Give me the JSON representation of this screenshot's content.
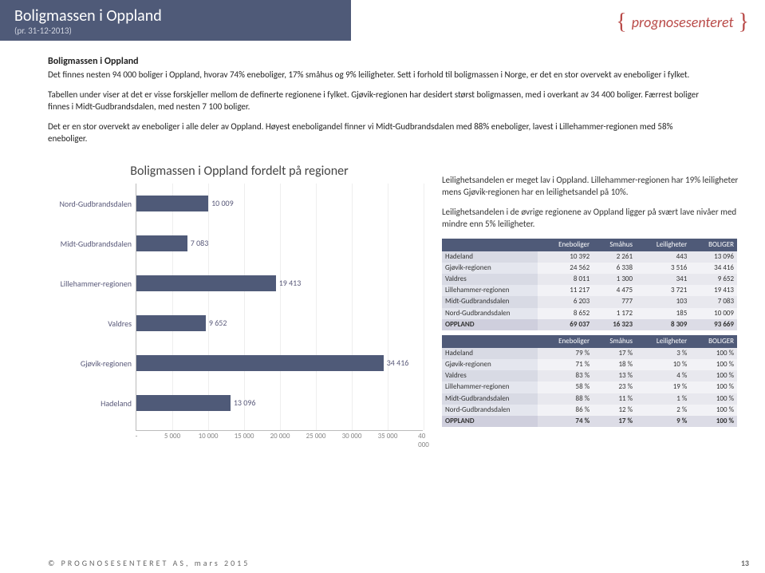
{
  "header": {
    "title": "Boligmassen i Oppland",
    "subtitle": "(pr. 31-12-2013)"
  },
  "logo": {
    "text": "prognosesenteret"
  },
  "intro": {
    "heading": "Boligmassen i Oppland",
    "p1": "Det finnes nesten 94 000 boliger i Oppland, hvorav 74% eneboliger, 17% småhus og 9% leiligheter. Sett i forhold til boligmassen i Norge, er det en stor overvekt av eneboliger i fylket.",
    "p2": "Tabellen under viser at det er visse forskjeller mellom de definerte regionene i fylket. Gjøvik-regionen har desidert størst boligmassen, med i overkant av 34 400 boliger. Færrest boliger finnes i Midt-Gudbrandsdalen, med nesten 7 100 boliger.",
    "p3": "Det er en stor overvekt av eneboliger i alle deler av Oppland. Høyest eneboligandel finner vi Midt-Gudbrandsdalen med 88% eneboliger, lavest i Lillehammer-regionen med 58% eneboliger."
  },
  "chart": {
    "title": "Boligmassen i Oppland fordelt på regioner",
    "bar_color": "#4f5a78",
    "xmax": 40000,
    "xticks": [
      "-",
      "5 000",
      "10 000",
      "15 000",
      "20 000",
      "25 000",
      "30 000",
      "35 000",
      "40 000"
    ],
    "bars": [
      {
        "label": "Nord-Gudbrandsdalen",
        "value": 10009,
        "text": "10 009"
      },
      {
        "label": "Midt-Gudbrandsdalen",
        "value": 7083,
        "text": "7 083"
      },
      {
        "label": "Lillehammer-regionen",
        "value": 19413,
        "text": "19 413"
      },
      {
        "label": "Valdres",
        "value": 9652,
        "text": "9 652"
      },
      {
        "label": "Gjøvik-regionen",
        "value": 34416,
        "text": "34 416"
      },
      {
        "label": "Hadeland",
        "value": 13096,
        "text": "13 096"
      }
    ]
  },
  "side_text": {
    "p1": "Leilighetsandelen er meget lav i Oppland. Lillehammer-regionen har 19% leiligheter mens Gjøvik-regionen har en leilighetsandel på 10%.",
    "p2": "Leilighetsandelen i de øvrige regionene av Oppland ligger på svært lave nivåer med mindre enn 5% leiligheter."
  },
  "table1": {
    "headers": [
      "",
      "Eneboliger",
      "Småhus",
      "Leiligheter",
      "BOLIGER"
    ],
    "rows": [
      [
        "Hadeland",
        "10 392",
        "2 261",
        "443",
        "13 096"
      ],
      [
        "Gjøvik-regionen",
        "24 562",
        "6 338",
        "3 516",
        "34 416"
      ],
      [
        "Valdres",
        "8 011",
        "1 300",
        "341",
        "9 652"
      ],
      [
        "Lillehammer-regionen",
        "11 217",
        "4 475",
        "3 721",
        "19 413"
      ],
      [
        "Midt-Gudbrandsdalen",
        "6 203",
        "777",
        "103",
        "7 083"
      ],
      [
        "Nord-Gudbrandsdalen",
        "8 652",
        "1 172",
        "185",
        "10 009"
      ],
      [
        "OPPLAND",
        "69 037",
        "16 323",
        "8 309",
        "93 669"
      ]
    ]
  },
  "table2": {
    "headers": [
      "",
      "Eneboliger",
      "Småhus",
      "Leiligheter",
      "BOLIGER"
    ],
    "rows": [
      [
        "Hadeland",
        "79 %",
        "17 %",
        "3 %",
        "100 %"
      ],
      [
        "Gjøvik-regionen",
        "71 %",
        "18 %",
        "10 %",
        "100 %"
      ],
      [
        "Valdres",
        "83 %",
        "13 %",
        "4 %",
        "100 %"
      ],
      [
        "Lillehammer-regionen",
        "58 %",
        "23 %",
        "19 %",
        "100 %"
      ],
      [
        "Midt-Gudbrandsdalen",
        "88 %",
        "11 %",
        "1 %",
        "100 %"
      ],
      [
        "Nord-Gudbrandsdalen",
        "86 %",
        "12 %",
        "2 %",
        "100 %"
      ],
      [
        "OPPLAND",
        "74 %",
        "17 %",
        "9 %",
        "100 %"
      ]
    ]
  },
  "footer": {
    "left": "© PROGNOSESENTERET AS, mars 2015",
    "page": "13"
  }
}
